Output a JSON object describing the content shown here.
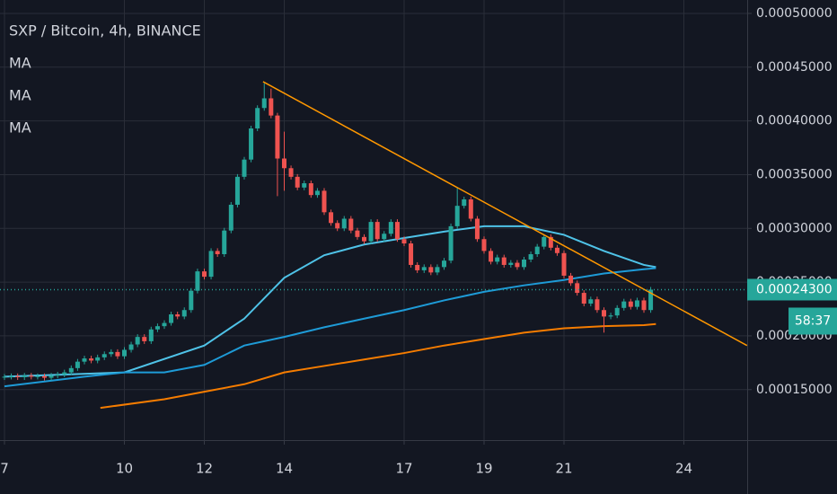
{
  "chart_data": {
    "type": "candlestick",
    "title": "SXP / Bitcoin, 4h, BINANCE",
    "up_color": "#26a69a",
    "down_color": "#ef5350",
    "x": [
      7,
      7.17,
      7.33,
      7.5,
      7.67,
      7.83,
      8,
      8.17,
      8.33,
      8.5,
      8.67,
      8.83,
      9,
      9.17,
      9.33,
      9.5,
      9.67,
      9.83,
      10,
      10.17,
      10.33,
      10.5,
      10.67,
      10.83,
      11,
      11.17,
      11.33,
      11.5,
      11.67,
      11.83,
      12,
      12.17,
      12.33,
      12.5,
      12.67,
      12.83,
      13,
      13.17,
      13.33,
      13.5,
      13.67,
      13.83,
      14,
      14.17,
      14.33,
      14.5,
      14.67,
      14.83,
      15,
      15.17,
      15.33,
      15.5,
      15.67,
      15.83,
      16,
      16.17,
      16.33,
      16.5,
      16.67,
      16.83,
      17,
      17.17,
      17.33,
      17.5,
      17.67,
      17.83,
      18,
      18.17,
      18.33,
      18.5,
      18.67,
      18.83,
      19,
      19.17,
      19.33,
      19.5,
      19.67,
      19.83,
      20,
      20.17,
      20.33,
      20.5,
      20.67,
      20.83,
      21,
      21.17,
      21.33,
      21.5,
      21.67,
      21.83,
      22,
      22.17,
      22.33,
      22.5,
      22.67,
      22.83,
      23,
      23.17
    ],
    "open": [
      0.0001615,
      0.000162,
      0.0001625,
      0.0001615,
      0.000163,
      0.000162,
      0.0001625,
      0.000161,
      0.000163,
      0.000164,
      0.000166,
      0.00017,
      0.000176,
      0.000179,
      0.000177,
      0.00018,
      0.000183,
      0.000185,
      0.000181,
      0.000187,
      0.000192,
      0.000199,
      0.000195,
      0.000206,
      0.000209,
      0.000212,
      0.00022,
      0.000218,
      0.000224,
      0.000242,
      0.00026,
      0.000255,
      0.000279,
      0.000276,
      0.000298,
      0.000322,
      0.000348,
      0.000364,
      0.000393,
      0.000412,
      0.000421,
      0.000405,
      0.000365,
      0.000356,
      0.000348,
      0.000338,
      0.000342,
      0.000331,
      0.000335,
      0.000315,
      0.000305,
      0.0003,
      0.000309,
      0.000298,
      0.000292,
      0.000288,
      0.000306,
      0.00029,
      0.000295,
      0.000306,
      0.00029,
      0.000286,
      0.000266,
      0.000261,
      0.000264,
      0.000259,
      0.000264,
      0.00027,
      0.000302,
      0.000321,
      0.000327,
      0.000309,
      0.00029,
      0.000279,
      0.000269,
      0.000273,
      0.000266,
      0.000268,
      0.000264,
      0.000271,
      0.000276,
      0.000283,
      0.000292,
      0.000282,
      0.000277,
      0.000256,
      0.000249,
      0.00024,
      0.00023,
      0.000234,
      0.000224,
      0.000218,
      0.000219,
      0.000226,
      0.000232,
      0.000227,
      0.000233,
      0.000224
    ],
    "high": [
      0.0001645,
      0.000165,
      0.000165,
      0.0001655,
      0.0001655,
      0.000165,
      0.000165,
      0.0001655,
      0.0001665,
      0.0001685,
      0.0001725,
      0.0001785,
      0.0001815,
      0.0001815,
      0.0001825,
      0.0001855,
      0.0001875,
      0.0001875,
      0.0001895,
      0.0001945,
      0.0002015,
      0.0002015,
      0.0002085,
      0.0002115,
      0.0002145,
      0.0002225,
      0.0002225,
      0.0002265,
      0.0002445,
      0.0002625,
      0.0002625,
      0.0002815,
      0.0002815,
      0.0003005,
      0.0003245,
      0.0003505,
      0.0003665,
      0.0003955,
      0.0004145,
      0.000435,
      0.00043,
      0.0004075,
      0.00039,
      0.0003585,
      0.0003505,
      0.0003445,
      0.0003445,
      0.0003375,
      0.0003375,
      0.0003175,
      0.0003075,
      0.0003115,
      0.0003115,
      0.0003005,
      0.0002945,
      0.0003085,
      0.0003085,
      0.0002975,
      0.0003085,
      0.0003085,
      0.0002925,
      0.0002885,
      0.0002685,
      0.0002665,
      0.0002665,
      0.0002665,
      0.0002725,
      0.0003045,
      0.000338,
      0.0003295,
      0.0003295,
      0.0003115,
      0.0002925,
      0.0002815,
      0.0002755,
      0.0002755,
      0.0002705,
      0.0002705,
      0.0002735,
      0.0002785,
      0.0002855,
      0.0002945,
      0.0002945,
      0.0002845,
      0.0002795,
      0.0002585,
      0.0002515,
      0.0002425,
      0.0002365,
      0.0002365,
      0.0002265,
      0.0002215,
      0.0002285,
      0.0002345,
      0.0002345,
      0.0002355,
      0.0002355,
      0.0002455
    ],
    "low": [
      0.000159,
      0.0001595,
      0.000159,
      0.000159,
      0.0001595,
      0.0001595,
      0.0001585,
      0.0001585,
      0.0001605,
      0.0001615,
      0.0001635,
      0.0001675,
      0.0001735,
      0.0001745,
      0.0001745,
      0.0001775,
      0.0001805,
      0.0001785,
      0.0001785,
      0.0001845,
      0.0001895,
      0.0001925,
      0.0001925,
      0.0002035,
      0.0002065,
      0.0002095,
      0.0002155,
      0.0002155,
      0.0002215,
      0.0002395,
      0.0002525,
      0.0002525,
      0.0002735,
      0.0002735,
      0.0002955,
      0.0003195,
      0.0003455,
      0.0003615,
      0.0003905,
      0.0004095,
      0.0004025,
      0.00033,
      0.000335,
      0.0003455,
      0.0003355,
      0.0003355,
      0.0003285,
      0.0003285,
      0.0003125,
      0.0003025,
      0.0002975,
      0.0002975,
      0.0002955,
      0.0002895,
      0.0002855,
      0.0002855,
      0.0002875,
      0.0002875,
      0.0002925,
      0.0002875,
      0.0002835,
      0.0002635,
      0.0002585,
      0.0002585,
      0.0002565,
      0.0002565,
      0.0002615,
      0.0002675,
      0.0002995,
      0.0003185,
      0.0003065,
      0.0002875,
      0.0002765,
      0.0002665,
      0.0002665,
      0.0002635,
      0.0002635,
      0.0002615,
      0.0002615,
      0.0002685,
      0.0002735,
      0.0002805,
      0.0002795,
      0.0002745,
      0.0002535,
      0.0002465,
      0.0002375,
      0.0002275,
      0.0002275,
      0.0002215,
      0.000203,
      0.0002155,
      0.0002165,
      0.0002235,
      0.0002245,
      0.0002245,
      0.0002215,
      0.0002215
    ],
    "close": [
      0.000162,
      0.0001625,
      0.0001615,
      0.000163,
      0.000162,
      0.0001625,
      0.000161,
      0.000163,
      0.000164,
      0.000166,
      0.00017,
      0.000176,
      0.000179,
      0.000177,
      0.00018,
      0.000183,
      0.000185,
      0.000181,
      0.000187,
      0.000192,
      0.000199,
      0.000195,
      0.000206,
      0.000209,
      0.000212,
      0.00022,
      0.000218,
      0.000224,
      0.000242,
      0.00026,
      0.000255,
      0.000279,
      0.000276,
      0.000298,
      0.000322,
      0.000348,
      0.000364,
      0.000393,
      0.000412,
      0.000421,
      0.000405,
      0.000365,
      0.000356,
      0.000348,
      0.000338,
      0.000342,
      0.000331,
      0.000335,
      0.000315,
      0.000305,
      0.0003,
      0.000309,
      0.000298,
      0.000292,
      0.000288,
      0.000306,
      0.00029,
      0.000295,
      0.000306,
      0.00029,
      0.000286,
      0.000266,
      0.000261,
      0.000264,
      0.000259,
      0.000264,
      0.00027,
      0.000302,
      0.000321,
      0.000327,
      0.000309,
      0.00029,
      0.000279,
      0.000269,
      0.000273,
      0.000266,
      0.000268,
      0.000264,
      0.000271,
      0.000276,
      0.000283,
      0.000292,
      0.000282,
      0.000277,
      0.000256,
      0.000249,
      0.00024,
      0.00023,
      0.000234,
      0.000224,
      0.000218,
      0.000219,
      0.000226,
      0.000232,
      0.000227,
      0.000233,
      0.000224,
      0.000243
    ],
    "series": [
      {
        "name": "MA",
        "color": "#4fc3e8",
        "x": [
          7,
          10,
          12,
          13,
          14,
          15,
          16,
          17,
          18,
          19,
          20,
          21,
          22,
          23,
          23.3
        ],
        "values": [
          0.000162,
          0.000166,
          0.000191,
          0.000216,
          0.000254,
          0.000275,
          0.000285,
          0.000291,
          0.000297,
          0.000302,
          0.000302,
          0.000294,
          0.000279,
          0.000266,
          0.000264
        ]
      },
      {
        "name": "MA",
        "color": "#1e9bd7",
        "x": [
          7,
          9,
          10,
          11,
          12,
          13,
          14,
          15,
          16,
          17,
          18,
          19,
          20,
          21,
          22,
          23,
          23.3
        ],
        "values": [
          0.000153,
          0.000162,
          0.000166,
          0.000166,
          0.000173,
          0.000191,
          0.000199,
          0.000208,
          0.000216,
          0.000224,
          0.000233,
          0.000241,
          0.000247,
          0.000252,
          0.000258,
          0.000262,
          0.000263
        ]
      },
      {
        "name": "MA",
        "color": "#f57c00",
        "x": [
          9.4,
          11,
          12,
          13,
          14,
          15,
          16,
          17,
          18,
          19,
          20,
          21,
          22,
          23,
          23.3
        ],
        "values": [
          0.000133,
          0.000141,
          0.000148,
          0.000155,
          0.000166,
          0.000172,
          0.000178,
          0.000184,
          0.000191,
          0.000197,
          0.000203,
          0.000207,
          0.000209,
          0.00021,
          0.000211
        ]
      }
    ],
    "trendline": {
      "color": "#ff9800",
      "x": [
        13.47,
        25.58
      ],
      "values": [
        0.0004365,
        0.000191
      ]
    },
    "last_price": {
      "value": 0.000243,
      "label": "0.00024300"
    },
    "countdown": "58:37",
    "xlim": [
      6.888,
      25.584
    ],
    "xticks": [
      7,
      10,
      12,
      14,
      17,
      19,
      21,
      24
    ],
    "ylim": [
      0.000103,
      0.0005125
    ],
    "yticks": [
      {
        "value": 0.0005,
        "label": "0.00050000"
      },
      {
        "value": 0.00045,
        "label": "0.00045000"
      },
      {
        "value": 0.0004,
        "label": "0.00040000"
      },
      {
        "value": 0.00035,
        "label": "0.00035000"
      },
      {
        "value": 0.0003,
        "label": "0.00030000"
      },
      {
        "value": 0.00025,
        "label": "0.00025000"
      },
      {
        "value": 0.0002,
        "label": "0.00020000"
      },
      {
        "value": 0.00015,
        "label": "0.00015000"
      }
    ],
    "grid": true
  }
}
